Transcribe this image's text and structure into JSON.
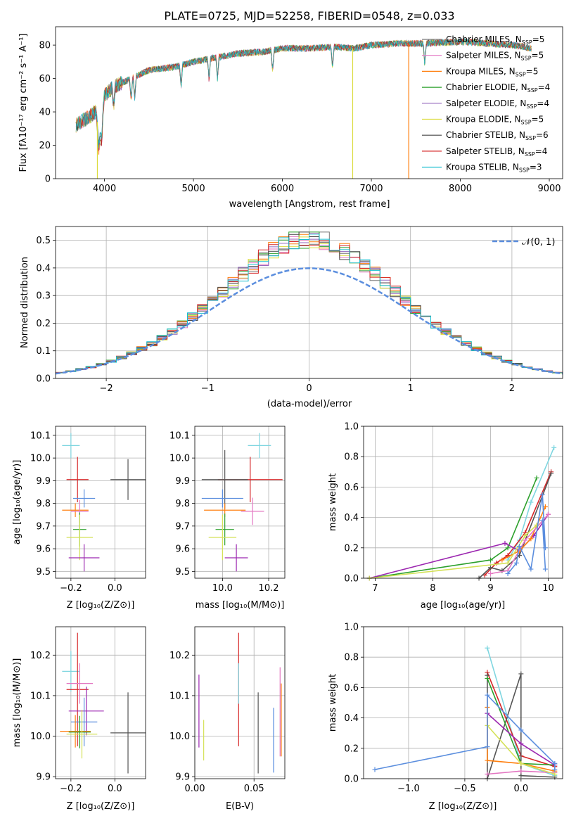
{
  "chart_data": [
    {
      "id": "spectrum",
      "type": "line",
      "title": "PLATE=0725, MJD=52258, FIBERID=0548, z=0.033",
      "xlabel": "wavelength [Angstrom, rest frame]",
      "ylabel": "Flux [fλ10⁻¹⁷ erg cm⁻² s⁻¹ A⁻¹]",
      "xlim": [
        3450,
        9150
      ],
      "ylim": [
        0,
        91
      ],
      "xticks": [
        4000,
        5000,
        6000,
        7000,
        8000,
        9000
      ],
      "yticks": [
        0,
        20,
        40,
        60,
        80
      ],
      "grid": false,
      "legend_position": "right",
      "series": [
        {
          "name": "Chabrier MILES, NSSP=5",
          "color": "#777777"
        },
        {
          "name": "Salpeter MILES, NSSP=5",
          "color": "#e377c2"
        },
        {
          "name": "Kroupa MILES, NSSP=5",
          "color": "#ff7f0e"
        },
        {
          "name": "Chabrier ELODIE, NSSP=4",
          "color": "#2ca02c"
        },
        {
          "name": "Salpeter ELODIE, NSSP=4",
          "color": "#9467bd"
        },
        {
          "name": "Kroupa ELODIE, NSSP=5",
          "color": "#dbdb3d"
        },
        {
          "name": "Chabrier STELIB, NSSP=6",
          "color": "#444444"
        },
        {
          "name": "Salpeter STELIB, NSSP=4",
          "color": "#d62728"
        },
        {
          "name": "Kroupa STELIB, NSSP=3",
          "color": "#17becf"
        }
      ],
      "legend_labels": [
        {
          "label": "Chabrier MILES, N",
          "sub": "SSP",
          "rest": "=5"
        },
        {
          "label": "Salpeter MILES, N",
          "sub": "SSP",
          "rest": "=5"
        },
        {
          "label": "Kroupa MILES, N",
          "sub": "SSP",
          "rest": "=5"
        },
        {
          "label": "Chabrier ELODIE, N",
          "sub": "SSP",
          "rest": "=4"
        },
        {
          "label": "Salpeter ELODIE, N",
          "sub": "SSP",
          "rest": "=4"
        },
        {
          "label": "Kroupa ELODIE, N",
          "sub": "SSP",
          "rest": "=5"
        },
        {
          "label": "Chabrier STELIB, N",
          "sub": "SSP",
          "rest": "=6"
        },
        {
          "label": "Salpeter STELIB, N",
          "sub": "SSP",
          "rest": "=4"
        },
        {
          "label": "Kroupa STELIB, N",
          "sub": "SSP",
          "rest": "=3"
        }
      ],
      "spectrum_shape": {
        "x": [
          3680,
          3800,
          3900,
          3950,
          4000,
          4100,
          4300,
          4500,
          4800,
          5000,
          5200,
          5500,
          5800,
          6000,
          6300,
          6600,
          6800,
          7000,
          7300,
          7600,
          8000,
          8300,
          8600,
          8800
        ],
        "y": [
          32,
          36,
          40,
          25,
          50,
          55,
          60,
          65,
          67,
          70,
          72,
          75,
          76,
          78,
          78,
          79,
          78,
          80,
          81,
          81,
          82,
          81,
          80,
          78
        ]
      },
      "dropouts": [
        {
          "x": 3920,
          "to": 0,
          "color": "#dbdb3d"
        },
        {
          "x": 6790,
          "to": 0,
          "color": "#dbdb3d"
        },
        {
          "x": 7420,
          "to": 0,
          "color": "#ff7f0e"
        }
      ]
    },
    {
      "id": "residuals",
      "type": "line",
      "xlabel": "(data-model)/error",
      "ylabel": "Normed distribution",
      "xlim": [
        -2.5,
        2.5
      ],
      "ylim": [
        0,
        0.55
      ],
      "xticks": [
        -2,
        -1,
        0,
        1,
        2
      ],
      "yticks": [
        0.0,
        0.1,
        0.2,
        0.3,
        0.4,
        0.5
      ],
      "grid": true,
      "legend": "𝒩(0, 1)",
      "legend_position": "top-right",
      "normal_curve": {
        "mean": 0,
        "sigma": 1,
        "color": "#5b8ede"
      },
      "histogram_bin_width": 0.1
    },
    {
      "id": "age_vs_Z",
      "type": "scatter",
      "xlabel": "Z [log₁₀(Z/Z⊙)]",
      "ylabel": "age  [log₁₀(age/yr)]",
      "xlim": [
        -0.27,
        0.14
      ],
      "ylim": [
        9.47,
        10.14
      ],
      "xticks": [
        -0.2,
        0.0
      ],
      "yticks": [
        9.5,
        9.6,
        9.7,
        9.8,
        9.9,
        10.0,
        10.1
      ],
      "points": [
        {
          "x": -0.2,
          "y": 10.055,
          "xerr": 0.04,
          "yerr": 0.055,
          "color": "#7fd6e0"
        },
        {
          "x": -0.17,
          "y": 9.905,
          "xerr": 0.05,
          "yerr": 0.1,
          "color": "#d62728"
        },
        {
          "x": 0.06,
          "y": 9.905,
          "xerr": 0.08,
          "yerr": 0.09,
          "color": "#555555"
        },
        {
          "x": -0.14,
          "y": 9.822,
          "xerr": 0.05,
          "yerr": 0.04,
          "color": "#5b8ede"
        },
        {
          "x": -0.18,
          "y": 9.77,
          "xerr": 0.06,
          "yerr": 0.03,
          "color": "#ff7f0e"
        },
        {
          "x": -0.16,
          "y": 9.765,
          "xerr": 0.04,
          "yerr": 0.05,
          "color": "#e377c2"
        },
        {
          "x": -0.16,
          "y": 9.685,
          "xerr": 0.03,
          "yerr": 0.075,
          "color": "#2ca02c"
        },
        {
          "x": -0.16,
          "y": 9.65,
          "xerr": 0.06,
          "yerr": 0.1,
          "color": "#d4e157"
        },
        {
          "x": -0.14,
          "y": 9.56,
          "xerr": 0.07,
          "yerr": 0.06,
          "color": "#9c27b0"
        }
      ]
    },
    {
      "id": "age_vs_mass",
      "type": "scatter",
      "xlabel": "mass [log₁₀(M/M⊙)]",
      "xlim": [
        9.88,
        10.27
      ],
      "ylim": [
        9.47,
        10.14
      ],
      "xticks": [
        10.0,
        10.2
      ],
      "yticks": [
        9.5,
        9.6,
        9.7,
        9.8,
        9.9,
        10.0,
        10.1
      ],
      "points": [
        {
          "x": 10.16,
          "y": 10.055,
          "xerr": 0.05,
          "yerr": 0.055,
          "color": "#7fd6e0"
        },
        {
          "x": 10.12,
          "y": 9.905,
          "xerr": 0.14,
          "yerr": 0.1,
          "color": "#d62728"
        },
        {
          "x": 10.01,
          "y": 9.905,
          "xerr": 0.1,
          "yerr": 0.13,
          "color": "#555555"
        },
        {
          "x": 10.0,
          "y": 9.822,
          "xerr": 0.09,
          "yerr": 0.04,
          "color": "#5b8ede"
        },
        {
          "x": 10.01,
          "y": 9.77,
          "xerr": 0.09,
          "yerr": 0.03,
          "color": "#ff7f0e"
        },
        {
          "x": 10.13,
          "y": 9.765,
          "xerr": 0.05,
          "yerr": 0.06,
          "color": "#e377c2"
        },
        {
          "x": 10.01,
          "y": 9.685,
          "xerr": 0.04,
          "yerr": 0.07,
          "color": "#2ca02c"
        },
        {
          "x": 10.0,
          "y": 9.65,
          "xerr": 0.06,
          "yerr": 0.1,
          "color": "#d4e157"
        },
        {
          "x": 10.06,
          "y": 9.56,
          "xerr": 0.05,
          "yerr": 0.06,
          "color": "#9c27b0"
        }
      ]
    },
    {
      "id": "massweight_vs_age",
      "type": "line",
      "xlabel": "age  [log₁₀(age/yr)]",
      "ylabel": "mass weight",
      "xlim": [
        6.8,
        10.25
      ],
      "ylim": [
        0,
        1.0
      ],
      "xticks": [
        7,
        8,
        9,
        10
      ],
      "yticks": [
        0.0,
        0.2,
        0.4,
        0.6,
        0.8,
        1.0
      ],
      "grid": true,
      "series": [
        {
          "color": "#7fd6e0",
          "x": [
            9.3,
            9.5,
            9.7,
            10.1
          ],
          "y": [
            0.12,
            0.25,
            0.5,
            0.86
          ]
        },
        {
          "color": "#d62728",
          "x": [
            8.9,
            9.1,
            9.3,
            9.6,
            10.05
          ],
          "y": [
            0.02,
            0.1,
            0.15,
            0.3,
            0.7
          ]
        },
        {
          "color": "#555555",
          "x": [
            8.8,
            9.0,
            9.2,
            9.5,
            10.05
          ],
          "y": [
            0.0,
            0.07,
            0.05,
            0.15,
            0.69
          ]
        },
        {
          "color": "#2ca02c",
          "x": [
            6.9,
            9.0,
            9.3,
            9.8
          ],
          "y": [
            0.0,
            0.12,
            0.2,
            0.66
          ]
        },
        {
          "color": "#9c27b0",
          "x": [
            6.9,
            9.25,
            9.5,
            9.75,
            10.0
          ],
          "y": [
            0.0,
            0.23,
            0.18,
            0.28,
            0.42
          ]
        },
        {
          "color": "#ff7f0e",
          "x": [
            9.2,
            9.5,
            9.7,
            9.95
          ],
          "y": [
            0.12,
            0.18,
            0.26,
            0.47
          ]
        },
        {
          "color": "#e377c2",
          "x": [
            9.0,
            9.3,
            9.6,
            10.0
          ],
          "y": [
            0.03,
            0.05,
            0.25,
            0.42
          ]
        },
        {
          "color": "#d4e157",
          "x": [
            6.9,
            9.3,
            9.6,
            9.8
          ],
          "y": [
            0.0,
            0.1,
            0.28,
            0.35
          ]
        },
        {
          "color": "#5b8ede",
          "x": [
            9.3,
            9.45,
            9.5,
            9.7,
            9.9,
            9.95,
            9.9,
            9.95
          ],
          "y": [
            0.03,
            0.1,
            0.21,
            0.06,
            0.55,
            0.2,
            0.38,
            0.06
          ]
        }
      ]
    },
    {
      "id": "mass_vs_Z",
      "type": "scatter",
      "xlabel": "Z [log₁₀(Z/Z⊙)]",
      "ylabel": "mass [log₁₀(M/M⊙)]",
      "xlim": [
        -0.27,
        0.14
      ],
      "ylim": [
        9.895,
        10.27
      ],
      "xticks": [
        -0.2,
        0.0
      ],
      "yticks": [
        9.9,
        10.0,
        10.1,
        10.2
      ],
      "points": [
        {
          "x": -0.2,
          "y": 10.16,
          "xerr": 0.04,
          "yerr": 0.05,
          "color": "#7fd6e0"
        },
        {
          "x": -0.17,
          "y": 10.115,
          "xerr": 0.05,
          "yerr": 0.14,
          "color": "#d62728"
        },
        {
          "x": -0.16,
          "y": 10.13,
          "xerr": 0.06,
          "yerr": 0.05,
          "color": "#e377c2"
        },
        {
          "x": -0.13,
          "y": 10.062,
          "xerr": 0.08,
          "yerr": 0.06,
          "color": "#9c27b0"
        },
        {
          "x": -0.14,
          "y": 10.035,
          "xerr": 0.06,
          "yerr": 0.06,
          "color": "#5b8ede"
        },
        {
          "x": 0.06,
          "y": 10.008,
          "xerr": 0.08,
          "yerr": 0.1,
          "color": "#555555"
        },
        {
          "x": -0.18,
          "y": 10.012,
          "xerr": 0.07,
          "yerr": 0.04,
          "color": "#ff7f0e"
        },
        {
          "x": -0.16,
          "y": 10.01,
          "xerr": 0.05,
          "yerr": 0.04,
          "color": "#2ca02c"
        },
        {
          "x": -0.15,
          "y": 10.005,
          "xerr": 0.07,
          "yerr": 0.06,
          "color": "#d4e157"
        }
      ]
    },
    {
      "id": "mass_vs_ebv",
      "type": "scatter",
      "xlabel": "E(B-V)",
      "xlim": [
        0.0,
        0.076
      ],
      "ylim": [
        9.895,
        10.27
      ],
      "xticks": [
        0.0,
        0.05
      ],
      "yticks": [
        9.9,
        10.0,
        10.1,
        10.2
      ],
      "points": [
        {
          "x": 0.037,
          "y": 10.115,
          "yerr": 0.14,
          "color": "#d62728"
        },
        {
          "x": 0.037,
          "y": 10.13,
          "yerr": 0.05,
          "color": "#7fd6e0"
        },
        {
          "x": 0.0035,
          "y": 10.062,
          "yerr": 0.09,
          "color": "#9c27b0"
        },
        {
          "x": 0.0075,
          "y": 9.99,
          "yerr": 0.05,
          "color": "#d4e157"
        },
        {
          "x": 0.0535,
          "y": 10.008,
          "yerr": 0.1,
          "color": "#555555"
        },
        {
          "x": 0.0665,
          "y": 9.99,
          "yerr": 0.08,
          "color": "#5b8ede"
        },
        {
          "x": 0.072,
          "y": 10.06,
          "yerr": 0.11,
          "color": "#e377c2"
        },
        {
          "x": 0.073,
          "y": 10.04,
          "yerr": 0.09,
          "color": "#ff7f0e"
        }
      ]
    },
    {
      "id": "massweight_vs_Z",
      "type": "line",
      "xlabel": "Z [log₁₀(Z/Z⊙)]",
      "ylabel": "mass weight",
      "xlim": [
        -1.4,
        0.37
      ],
      "ylim": [
        0,
        1.0
      ],
      "xticks": [
        -1.0,
        -0.5,
        0.0
      ],
      "yticks": [
        0.0,
        0.2,
        0.4,
        0.6,
        0.8,
        1.0
      ],
      "grid": true,
      "series": [
        {
          "color": "#7fd6e0",
          "x": [
            -0.3,
            0.0,
            0.3
          ],
          "y": [
            0.86,
            0.1,
            0.02
          ]
        },
        {
          "color": "#d62728",
          "x": [
            -0.3,
            0.0,
            0.3
          ],
          "y": [
            0.7,
            0.15,
            0.08
          ]
        },
        {
          "color": "#555555",
          "x": [
            -0.3,
            -0.3,
            0.0,
            0.0,
            0.3
          ],
          "y": [
            0.68,
            0.0,
            0.69,
            0.02,
            0.01
          ]
        },
        {
          "color": "#2ca02c",
          "x": [
            -0.3,
            0.0,
            0.3
          ],
          "y": [
            0.66,
            0.1,
            0.09
          ]
        },
        {
          "color": "#9c27b0",
          "x": [
            -0.3,
            0.0,
            0.3
          ],
          "y": [
            0.43,
            0.23,
            0.09
          ]
        },
        {
          "color": "#ff7f0e",
          "x": [
            -0.3,
            -0.3,
            0.0,
            0.3
          ],
          "y": [
            0.47,
            0.12,
            0.1,
            0.05
          ]
        },
        {
          "color": "#e377c2",
          "x": [
            -0.3,
            0.0,
            0.3
          ],
          "y": [
            0.03,
            0.05,
            0.04
          ]
        },
        {
          "color": "#d4e157",
          "x": [
            -0.3,
            0.0,
            0.3
          ],
          "y": [
            0.35,
            0.1,
            0.03
          ]
        },
        {
          "color": "#5b8ede",
          "x": [
            -1.3,
            -0.3,
            -0.3,
            0.0,
            0.3,
            0.3
          ],
          "y": [
            0.06,
            0.21,
            0.55,
            0.32,
            0.1,
            0.06
          ]
        }
      ]
    }
  ]
}
